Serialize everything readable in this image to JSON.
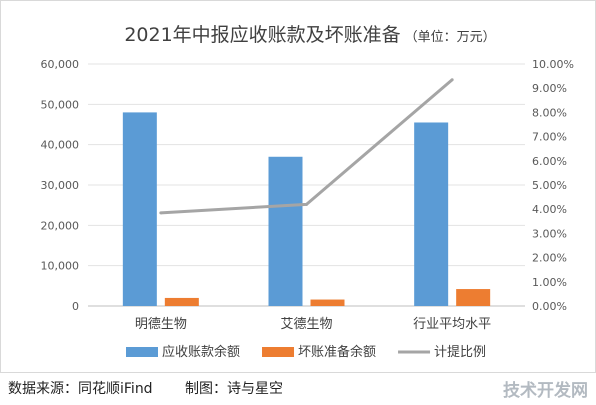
{
  "chart_data": {
    "type": "bar",
    "title": "2021年中报应收账款及坏账准备",
    "subtitle": "（单位：万元）",
    "categories": [
      "明德生物",
      "艾德生物",
      "行业平均水平"
    ],
    "series": [
      {
        "name": "应收账款余额",
        "axis": "left",
        "kind": "bar",
        "color": "#5b9bd5",
        "values": [
          48000,
          37000,
          45500
        ]
      },
      {
        "name": "坏账准备余额",
        "axis": "left",
        "kind": "bar",
        "color": "#ed7d31",
        "values": [
          2000,
          1600,
          4200
        ]
      },
      {
        "name": "计提比例",
        "axis": "right",
        "kind": "line",
        "color": "#a5a5a5",
        "values": [
          0.0385,
          0.042,
          0.0935
        ]
      }
    ],
    "y_left": {
      "min": 0,
      "max": 60000,
      "step": 10000,
      "ticks": [
        "0",
        "10,000",
        "20,000",
        "30,000",
        "40,000",
        "50,000",
        "60,000"
      ]
    },
    "y_right": {
      "min": 0,
      "max": 0.1,
      "step": 0.01,
      "ticks": [
        "0.00%",
        "1.00%",
        "2.00%",
        "3.00%",
        "4.00%",
        "5.00%",
        "6.00%",
        "7.00%",
        "8.00%",
        "9.00%",
        "10.00%"
      ]
    },
    "grid": true,
    "legend": "bottom"
  },
  "footer": {
    "source": "数据来源：同花顺iFind",
    "maker": "制图：诗与星空"
  },
  "watermark": "技术开发网"
}
